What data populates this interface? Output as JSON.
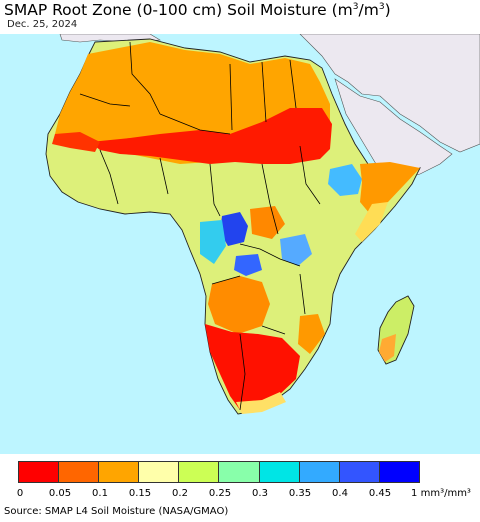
{
  "title_main": "SMAP Root Zone (0-100 cm) Soil Moisture (m",
  "title_exp1": "3",
  "title_mid": "/m",
  "title_exp2": "3",
  "title_end": ")",
  "date": "Dec. 25, 2024",
  "legend": {
    "colors": [
      "#ff0000",
      "#ff6600",
      "#ffa500",
      "#ffffaa",
      "#ccff55",
      "#88ffaa",
      "#00e5e5",
      "#33aaff",
      "#3355ff",
      "#0000ff"
    ],
    "ticks": [
      "0",
      "0.05",
      "0.1",
      "0.15",
      "0.2",
      "0.25",
      "0.3",
      "0.35",
      "0.4",
      "0.45",
      "1 mm³/mm³"
    ]
  },
  "source": "Source: SMAP L4 Soil Moisture (NASA/GMAO)",
  "colors": {
    "ocean": "#bdf5ff",
    "no_data_land": "#ece8f0"
  }
}
